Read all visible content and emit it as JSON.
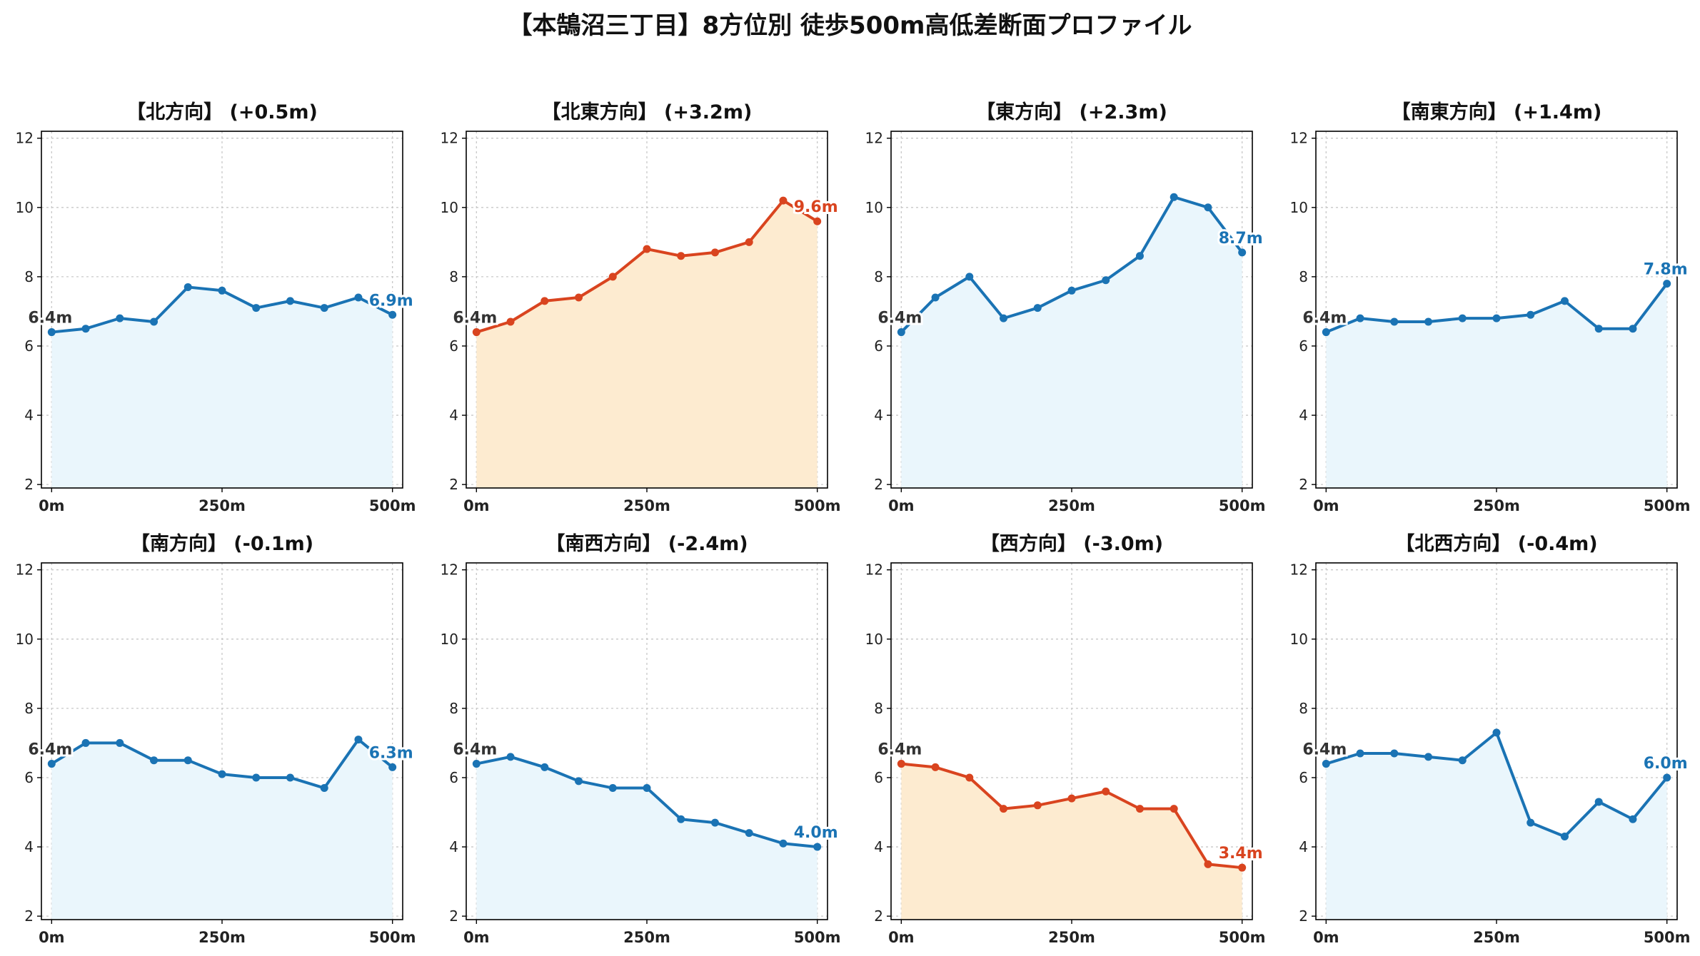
{
  "title": "【本鵠沼三丁目】8方位別 徒歩500m高低差断面プロファイル",
  "colors": {
    "up": "#d9441f",
    "up_fill": "#fdebd0",
    "flat": "#1a73b4",
    "flat_fill": "#eaf6fc",
    "start_label": "#333333",
    "grid": "#c8c8c8"
  },
  "chart_data": [
    {
      "type": "area",
      "title": "【北方向】 (+0.5m)",
      "color": "flat",
      "x": [
        0,
        50,
        100,
        150,
        200,
        250,
        300,
        350,
        400,
        450,
        500
      ],
      "y": [
        6.4,
        6.5,
        6.8,
        6.7,
        7.7,
        7.6,
        7.1,
        7.3,
        7.1,
        7.4,
        6.9
      ],
      "start_label": "6.4m",
      "end_label": "6.9m",
      "xticks": [
        "0m",
        "250m",
        "500m"
      ],
      "yticks": [
        "2",
        "4",
        "6",
        "8",
        "10",
        "12"
      ],
      "ylim": [
        1.9,
        12.2
      ],
      "grid": true
    },
    {
      "type": "area",
      "title": "【北東方向】 (+3.2m)",
      "color": "up",
      "x": [
        0,
        50,
        100,
        150,
        200,
        250,
        300,
        350,
        400,
        450,
        500
      ],
      "y": [
        6.4,
        6.7,
        7.3,
        7.4,
        8.0,
        8.8,
        8.6,
        8.7,
        9.0,
        10.2,
        9.6
      ],
      "start_label": "6.4m",
      "end_label": "9.6m",
      "xticks": [
        "0m",
        "250m",
        "500m"
      ],
      "yticks": [
        "2",
        "4",
        "6",
        "8",
        "10",
        "12"
      ],
      "ylim": [
        1.9,
        12.2
      ],
      "grid": true
    },
    {
      "type": "area",
      "title": "【東方向】 (+2.3m)",
      "color": "flat",
      "x": [
        0,
        50,
        100,
        150,
        200,
        250,
        300,
        350,
        400,
        450,
        500
      ],
      "y": [
        6.4,
        7.4,
        8.0,
        6.8,
        7.1,
        7.6,
        7.9,
        8.6,
        10.3,
        10.0,
        8.7
      ],
      "start_label": "6.4m",
      "end_label": "8.7m",
      "xticks": [
        "0m",
        "250m",
        "500m"
      ],
      "yticks": [
        "2",
        "4",
        "6",
        "8",
        "10",
        "12"
      ],
      "ylim": [
        1.9,
        12.2
      ],
      "grid": true
    },
    {
      "type": "area",
      "title": "【南東方向】 (+1.4m)",
      "color": "flat",
      "x": [
        0,
        50,
        100,
        150,
        200,
        250,
        300,
        350,
        400,
        450,
        500
      ],
      "y": [
        6.4,
        6.8,
        6.7,
        6.7,
        6.8,
        6.8,
        6.9,
        7.3,
        6.5,
        6.5,
        7.8
      ],
      "start_label": "6.4m",
      "end_label": "7.8m",
      "xticks": [
        "0m",
        "250m",
        "500m"
      ],
      "yticks": [
        "2",
        "4",
        "6",
        "8",
        "10",
        "12"
      ],
      "ylim": [
        1.9,
        12.2
      ],
      "grid": true
    },
    {
      "type": "area",
      "title": "【南方向】 (-0.1m)",
      "color": "flat",
      "x": [
        0,
        50,
        100,
        150,
        200,
        250,
        300,
        350,
        400,
        450,
        500
      ],
      "y": [
        6.4,
        7.0,
        7.0,
        6.5,
        6.5,
        6.1,
        6.0,
        6.0,
        5.7,
        7.1,
        6.3
      ],
      "start_label": "6.4m",
      "end_label": "6.3m",
      "xticks": [
        "0m",
        "250m",
        "500m"
      ],
      "yticks": [
        "2",
        "4",
        "6",
        "8",
        "10",
        "12"
      ],
      "ylim": [
        1.9,
        12.2
      ],
      "grid": true
    },
    {
      "type": "area",
      "title": "【南西方向】 (-2.4m)",
      "color": "flat",
      "x": [
        0,
        50,
        100,
        150,
        200,
        250,
        300,
        350,
        400,
        450,
        500
      ],
      "y": [
        6.4,
        6.6,
        6.3,
        5.9,
        5.7,
        5.7,
        4.8,
        4.7,
        4.4,
        4.1,
        4.0
      ],
      "start_label": "6.4m",
      "end_label": "4.0m",
      "xticks": [
        "0m",
        "250m",
        "500m"
      ],
      "yticks": [
        "2",
        "4",
        "6",
        "8",
        "10",
        "12"
      ],
      "ylim": [
        1.9,
        12.2
      ],
      "grid": true
    },
    {
      "type": "area",
      "title": "【西方向】 (-3.0m)",
      "color": "up",
      "x": [
        0,
        50,
        100,
        150,
        200,
        250,
        300,
        350,
        400,
        450,
        500
      ],
      "y": [
        6.4,
        6.3,
        6.0,
        5.1,
        5.2,
        5.4,
        5.6,
        5.1,
        5.1,
        3.5,
        3.4
      ],
      "start_label": "6.4m",
      "end_label": "3.4m",
      "xticks": [
        "0m",
        "250m",
        "500m"
      ],
      "yticks": [
        "2",
        "4",
        "6",
        "8",
        "10",
        "12"
      ],
      "ylim": [
        1.9,
        12.2
      ],
      "grid": true
    },
    {
      "type": "area",
      "title": "【北西方向】 (-0.4m)",
      "color": "flat",
      "x": [
        0,
        50,
        100,
        150,
        200,
        250,
        300,
        350,
        400,
        450,
        500
      ],
      "y": [
        6.4,
        6.7,
        6.7,
        6.6,
        6.5,
        7.3,
        4.7,
        4.3,
        5.3,
        4.8,
        6.0
      ],
      "start_label": "6.4m",
      "end_label": "6.0m",
      "xticks": [
        "0m",
        "250m",
        "500m"
      ],
      "yticks": [
        "2",
        "4",
        "6",
        "8",
        "10",
        "12"
      ],
      "ylim": [
        1.9,
        12.2
      ],
      "grid": true
    }
  ]
}
